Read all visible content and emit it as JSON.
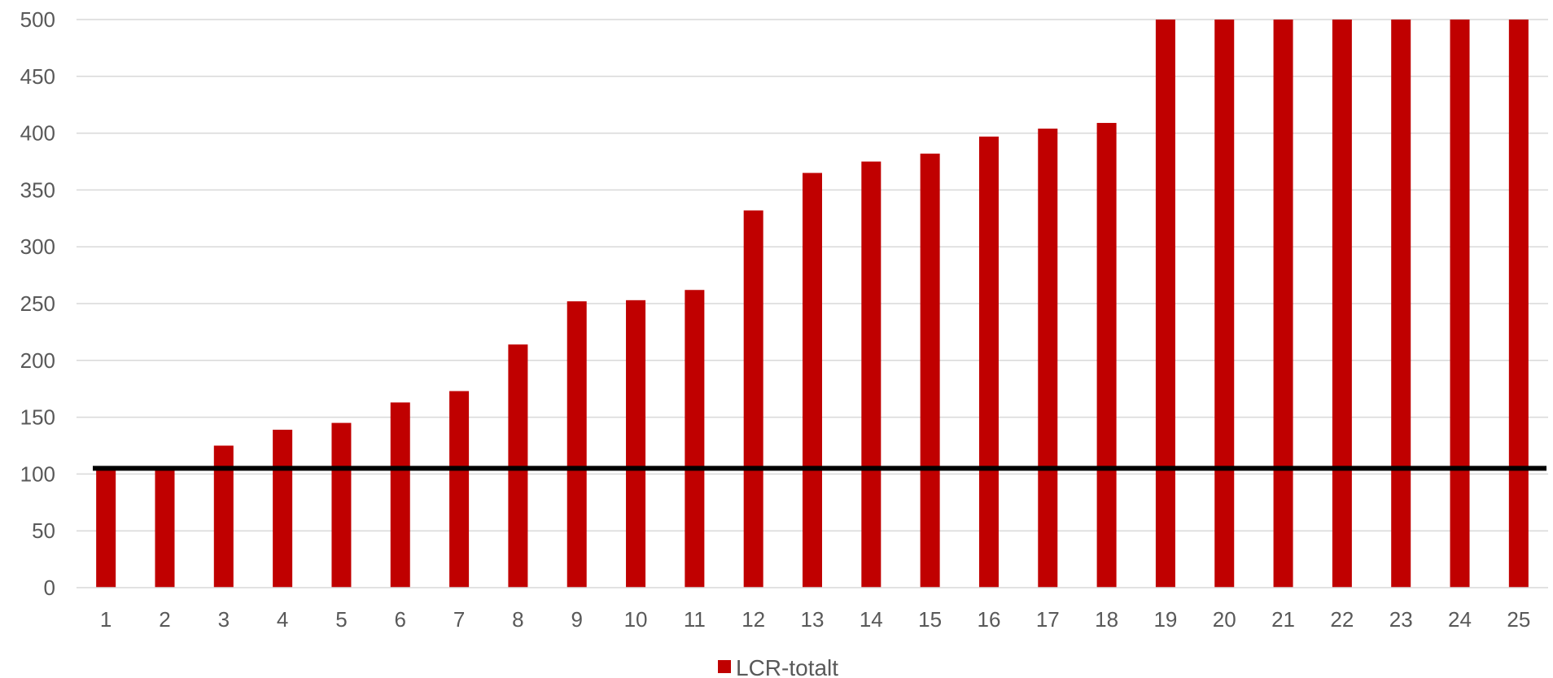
{
  "chart_data": {
    "type": "bar",
    "categories": [
      "1",
      "2",
      "3",
      "4",
      "5",
      "6",
      "7",
      "8",
      "9",
      "10",
      "11",
      "12",
      "13",
      "14",
      "15",
      "16",
      "17",
      "18",
      "19",
      "20",
      "21",
      "22",
      "23",
      "24",
      "25"
    ],
    "series": [
      {
        "name": "LCR-totalt",
        "color": "#c00000",
        "values": [
          104,
          104,
          125,
          139,
          145,
          163,
          173,
          214,
          252,
          253,
          262,
          332,
          365,
          375,
          382,
          397,
          404,
          409,
          500,
          500,
          500,
          500,
          500,
          500,
          500
        ]
      }
    ],
    "reference_line": {
      "value": 105,
      "color": "#000000"
    },
    "ylim": [
      0,
      500
    ],
    "yticks": [
      0,
      50,
      100,
      150,
      200,
      250,
      300,
      350,
      400,
      450,
      500
    ],
    "grid": true,
    "legend": {
      "position": "bottom"
    },
    "title": "",
    "xlabel": "",
    "ylabel": ""
  }
}
